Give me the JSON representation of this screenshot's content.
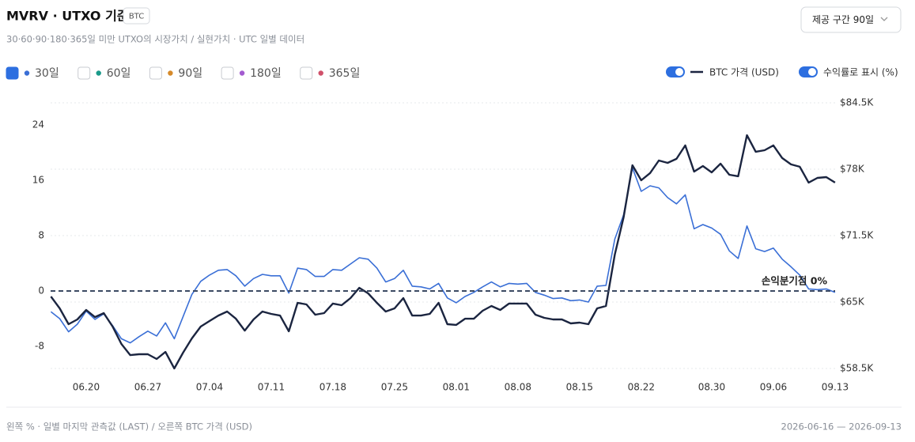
{
  "header": {
    "title": "MVRV · UTXO 기준",
    "badge": "BTC",
    "subtitle": "30·60·90·180·365일 미만 UTXO의 시장가치 / 실현가치 · UTC 일별 데이터",
    "range_select": "제공 구간 90일"
  },
  "controls": {
    "percent_toggle": {
      "label": "수익률로 표시 (%)",
      "on": true
    },
    "price_toggle_on": true
  },
  "footer": {
    "left": "왼쪽 % · 일별 마지막 관측값 (LAST) / 오른쪽 BTC 가격 (USD)",
    "right": "2026-06-16 — 2026-09-13"
  },
  "chart_data": {
    "type": "line",
    "categories": [
      null,
      null,
      null,
      null,
      "06.20",
      null,
      null,
      null,
      null,
      null,
      null,
      "06.27",
      null,
      null,
      null,
      null,
      null,
      null,
      "07.04",
      null,
      null,
      null,
      null,
      null,
      null,
      "07.11",
      null,
      null,
      null,
      null,
      null,
      null,
      "07.18",
      null,
      null,
      null,
      null,
      null,
      null,
      "07.25",
      null,
      null,
      null,
      null,
      null,
      null,
      "08.01",
      null,
      null,
      null,
      null,
      null,
      null,
      "08.08",
      null,
      null,
      null,
      null,
      null,
      null,
      "08.15",
      null,
      null,
      null,
      null,
      null,
      null,
      "08.22",
      null,
      null,
      null,
      null,
      null,
      null,
      null,
      "08.30",
      null,
      null,
      null,
      null,
      null,
      null,
      "09.06",
      null,
      null,
      null,
      null,
      null,
      null,
      "09.13"
    ],
    "ylim": [
      -11.2,
      27.2
    ],
    "yticks": [
      -8,
      0,
      8,
      16,
      24
    ],
    "y2lim": [
      58500,
      84500
    ],
    "y2ticks": [
      {
        "value": 58500,
        "label": "$58.5K"
      },
      {
        "value": 65000,
        "label": "$65K"
      },
      {
        "value": 71500,
        "label": "$71.5K"
      },
      {
        "value": 78000,
        "label": "$78K"
      },
      {
        "value": 84500,
        "label": "$84.5K"
      }
    ],
    "grid": true,
    "reference_line": {
      "value": 0,
      "label": "손익분기점 0%"
    },
    "series": [
      {
        "name": "30일",
        "color": "#3a6fd6",
        "checked": true,
        "values": [
          -3.0,
          -4.0,
          -5.9,
          -4.8,
          -2.9,
          -4.1,
          -3.3,
          -5.0,
          -6.9,
          -7.5,
          -6.6,
          -5.8,
          -6.5,
          -4.6,
          -6.9,
          -3.7,
          -0.5,
          1.4,
          2.3,
          3.0,
          3.1,
          2.2,
          0.7,
          1.8,
          2.4,
          2.2,
          2.2,
          -0.3,
          3.3,
          3.1,
          2.1,
          2.1,
          3.1,
          3.0,
          3.9,
          4.8,
          4.6,
          3.3,
          1.3,
          1.8,
          3.0,
          0.7,
          0.6,
          0.3,
          1.1,
          -1.0,
          -1.7,
          -0.8,
          -0.2,
          0.6,
          1.3,
          0.6,
          1.1,
          1.0,
          1.1,
          -0.2,
          -0.6,
          -1.1,
          -1.0,
          -1.4,
          -1.3,
          -1.6,
          0.7,
          0.8,
          7.5,
          11.0,
          17.8,
          14.4,
          15.2,
          14.9,
          13.5,
          12.6,
          13.9,
          9.0,
          9.6,
          9.1,
          8.2,
          5.8,
          4.7,
          9.4,
          6.1,
          5.7,
          6.2,
          4.6,
          3.5,
          2.3,
          0.3,
          0.2,
          0.3,
          -0.2
        ]
      },
      {
        "name": "BTC 가격 (USD)",
        "color": "#1b2540",
        "axis": "y2",
        "values": [
          65540,
          64380,
          62830,
          63300,
          64230,
          63530,
          63920,
          62600,
          60900,
          59810,
          59890,
          59890,
          59430,
          60120,
          58500,
          60050,
          61440,
          62600,
          63140,
          63680,
          64070,
          63370,
          62210,
          63300,
          64070,
          63840,
          63680,
          62140,
          64920,
          64770,
          63760,
          63920,
          64850,
          64690,
          65390,
          66390,
          65850,
          64920,
          64070,
          64380,
          65390,
          63680,
          63680,
          63840,
          64920,
          62830,
          62760,
          63370,
          63370,
          64150,
          64610,
          64230,
          64850,
          64850,
          64850,
          63760,
          63450,
          63300,
          63300,
          62910,
          62990,
          62830,
          64380,
          64610,
          69640,
          73280,
          78390,
          76920,
          77620,
          78850,
          78620,
          79010,
          80330,
          77770,
          78310,
          77690,
          78540,
          77460,
          77310,
          81330,
          79710,
          79860,
          80330,
          79090,
          78470,
          78240,
          76690,
          77150,
          77230,
          76690
        ]
      }
    ],
    "inactive_series": [
      {
        "name": "60일",
        "color": "#1a9a8a",
        "checked": false
      },
      {
        "name": "90일",
        "color": "#d68a2a",
        "checked": false
      },
      {
        "name": "180일",
        "color": "#a35bd0",
        "checked": false
      },
      {
        "name": "365일",
        "color": "#d0506a",
        "checked": false
      }
    ]
  }
}
